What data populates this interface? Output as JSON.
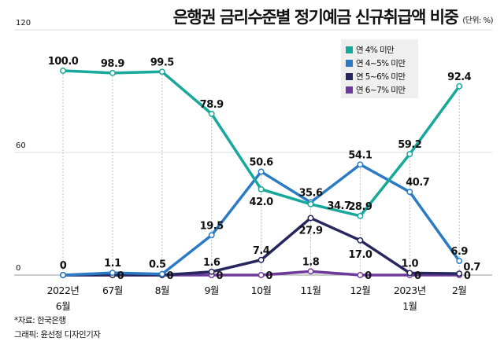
{
  "chart_data": {
    "type": "line",
    "title": "은행권 금리수준별 정기예금 신규취급액 비중",
    "unit": "(단위: %)",
    "categories": [
      [
        "2022년",
        "6월"
      ],
      [
        "67월"
      ],
      [
        "8월"
      ],
      [
        "9월"
      ],
      [
        "10월"
      ],
      [
        "11월"
      ],
      [
        "12월"
      ],
      [
        "2023년",
        "1월"
      ],
      [
        "2월"
      ]
    ],
    "ylim": [
      0,
      120
    ],
    "yticks": [
      0,
      60,
      120
    ],
    "grid": true,
    "legend_position": "top-right",
    "series": [
      {
        "name": "연 4% 미만",
        "color": "#17a89b",
        "values": [
          100.0,
          98.9,
          99.5,
          78.9,
          42.0,
          34.7,
          28.9,
          59.2,
          92.4
        ],
        "labels": [
          "100.0",
          "98.9",
          "99.5",
          "78.9",
          "42.0",
          "34.7",
          "28.9",
          "59.2",
          "92.4"
        ]
      },
      {
        "name": "연 4~5% 미만",
        "color": "#2a7bc4",
        "values": [
          0,
          1.1,
          0.5,
          19.5,
          50.6,
          35.6,
          54.1,
          40.7,
          6.9
        ],
        "labels": [
          "0",
          "1.1",
          "0.5",
          "19.5",
          "50.6",
          "35.6",
          "54.1",
          "40.7",
          "6.9"
        ]
      },
      {
        "name": "연 5~6% 미만",
        "color": "#27275e",
        "values": [
          0,
          0,
          0,
          1.6,
          7.4,
          27.9,
          17.0,
          1.0,
          0.7
        ],
        "labels": [
          null,
          "0",
          "0",
          "1.6",
          "7.4",
          "27.9",
          "17.0",
          "1.0",
          "0.7"
        ]
      },
      {
        "name": "연 6~7% 미만",
        "color": "#6d3a9c",
        "values": [
          0,
          0,
          0,
          0,
          0,
          1.8,
          0,
          0,
          0
        ],
        "labels": [
          null,
          null,
          null,
          "0",
          "0",
          "1.8",
          "0",
          "0",
          "0"
        ]
      }
    ]
  },
  "footer": {
    "source": "*자료: 한국은행",
    "credit": "그래픽: 윤선정 디자인기자"
  }
}
